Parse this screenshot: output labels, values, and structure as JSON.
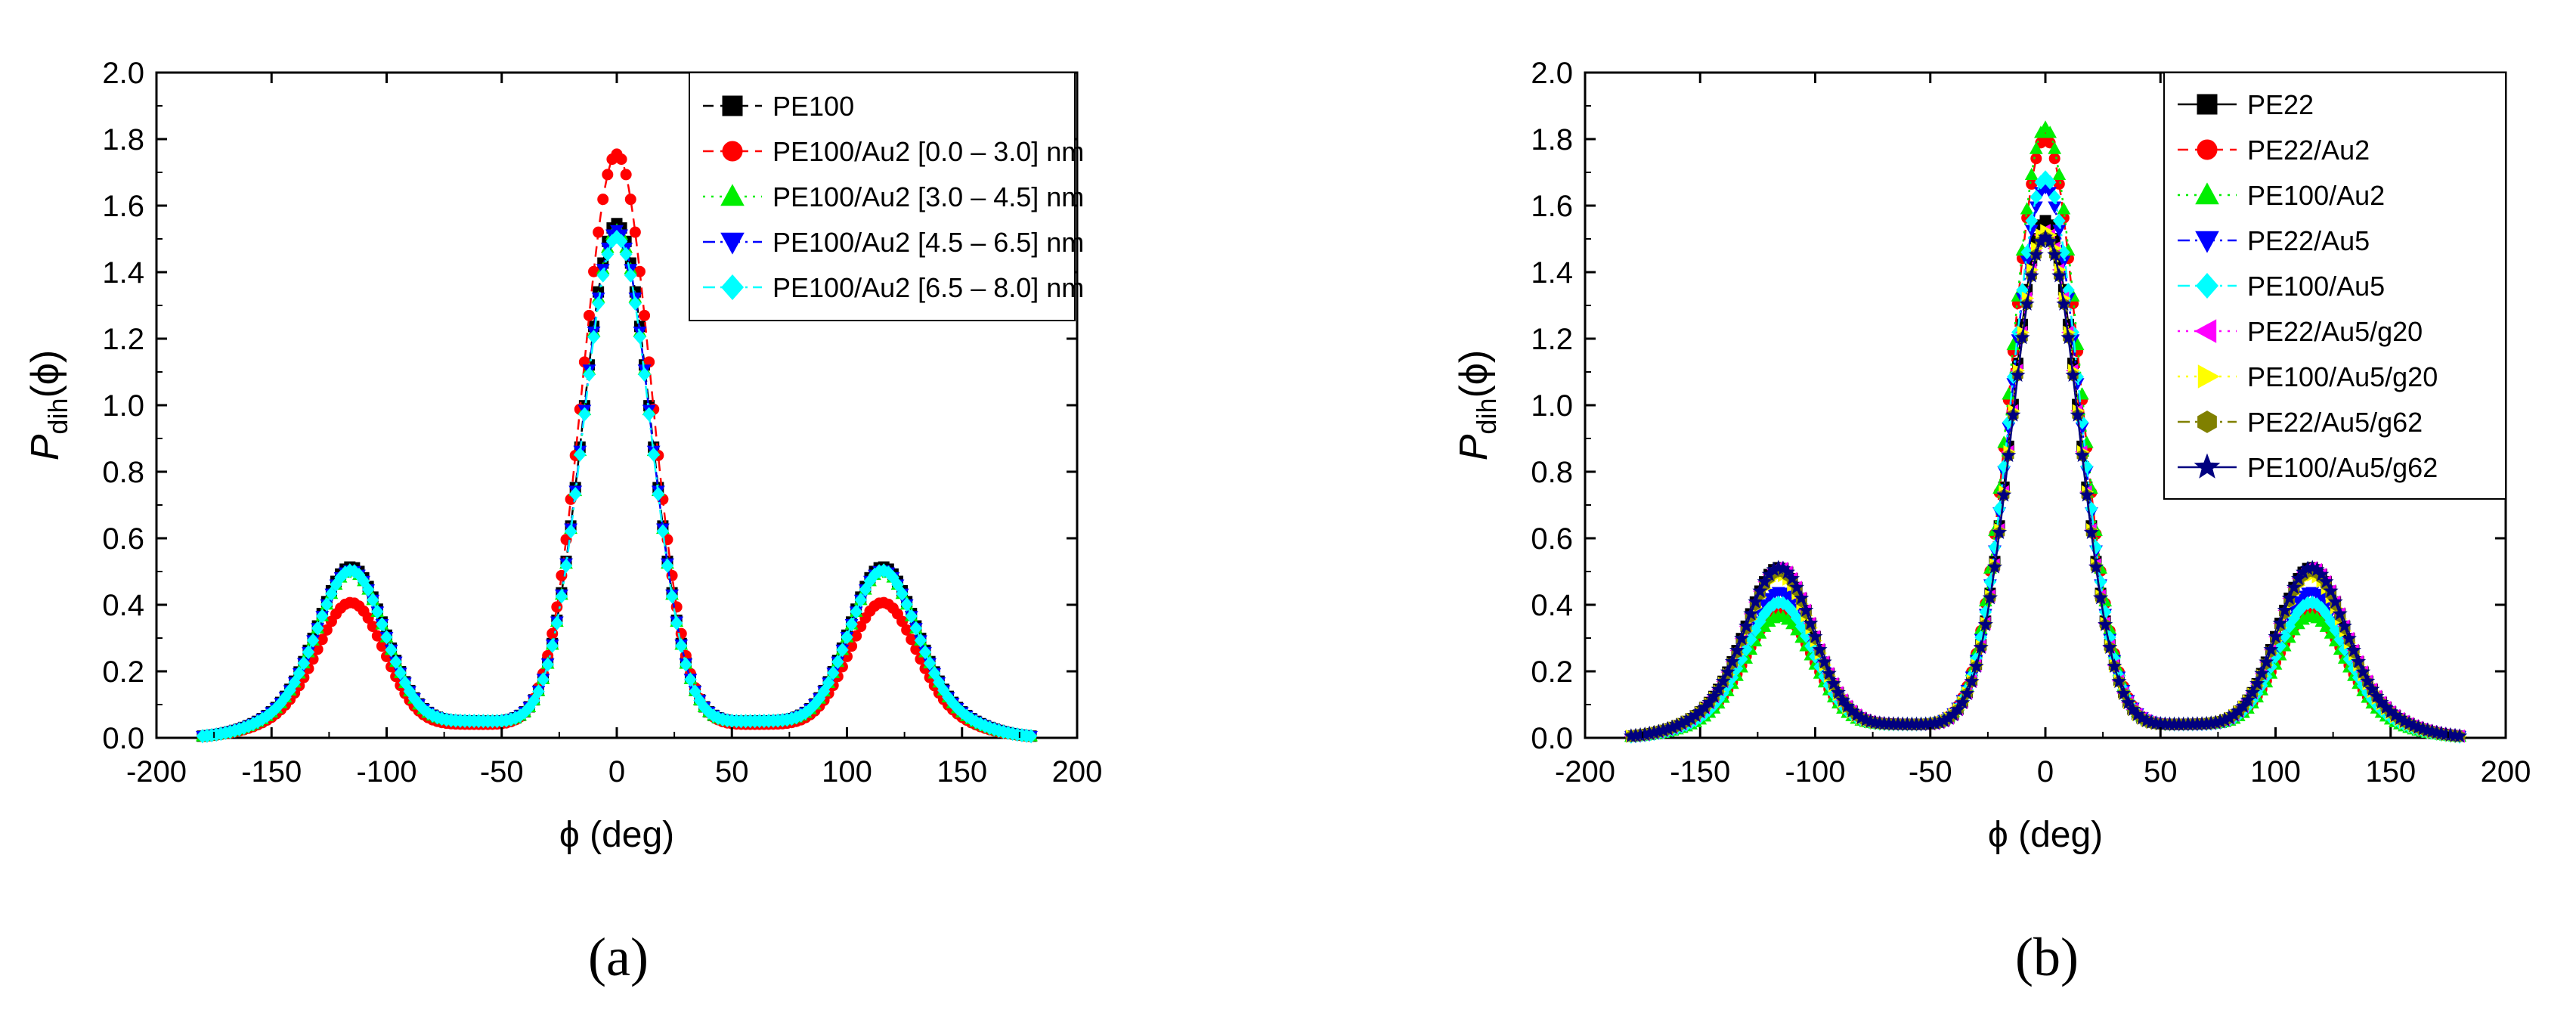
{
  "chart_data": [
    {
      "type": "line",
      "panel_label": "a",
      "title": "",
      "xlabel": "ϕ (deg)",
      "ylabel": "P",
      "ylabel_sub": "dih",
      "ylabel_arg": "(ϕ)",
      "xlim": [
        -200,
        200
      ],
      "ylim": [
        0.0,
        2.0
      ],
      "xticks": [
        -200,
        -150,
        -100,
        -50,
        0,
        50,
        100,
        150,
        200
      ],
      "yticks": [
        0.0,
        0.2,
        0.4,
        0.6,
        0.8,
        1.0,
        1.2,
        1.4,
        1.6,
        1.8,
        2.0
      ],
      "ytick_labels": [
        "0.0",
        "0.2",
        "0.4",
        "0.6",
        "0.8",
        "1.0",
        "1.2",
        "1.4",
        "1.6",
        "1.8",
        "2.0"
      ],
      "grid": false,
      "legend_position": "top-right",
      "data_range": [
        -180,
        180
      ],
      "series": [
        {
          "name": "PE100",
          "color": "#000000",
          "marker": "square",
          "line": "dash",
          "center_peak": 1.54,
          "side_peak": 0.48,
          "min": 0.05
        },
        {
          "name": "PE100/Au2 [0.0 – 3.0] nm",
          "color": "#ff0000",
          "marker": "circle",
          "line": "dash",
          "center_peak": 1.75,
          "side_peak": 0.38,
          "min": 0.04
        },
        {
          "name": "PE100/Au2 [3.0 – 4.5] nm",
          "color": "#00ee00",
          "marker": "triangle-up",
          "line": "dot",
          "center_peak": 1.52,
          "side_peak": 0.47,
          "min": 0.05
        },
        {
          "name": "PE100/Au2 [4.5 – 6.5] nm",
          "color": "#0000ff",
          "marker": "triangle-down",
          "line": "dashdot",
          "center_peak": 1.52,
          "side_peak": 0.47,
          "min": 0.05
        },
        {
          "name": "PE100/Au2 [6.5 – 8.0] nm",
          "color": "#00ffff",
          "marker": "diamond",
          "line": "dashdot",
          "center_peak": 1.5,
          "side_peak": 0.47,
          "min": 0.05
        }
      ]
    },
    {
      "type": "line",
      "panel_label": "b",
      "title": "",
      "xlabel": "ϕ (deg)",
      "ylabel": "P",
      "ylabel_sub": "dih",
      "ylabel_arg": "(ϕ)",
      "xlim": [
        -200,
        200
      ],
      "ylim": [
        0.0,
        2.0
      ],
      "xticks": [
        -200,
        -150,
        -100,
        -50,
        0,
        50,
        100,
        150,
        200
      ],
      "yticks": [
        0.0,
        0.2,
        0.4,
        0.6,
        0.8,
        1.0,
        1.2,
        1.4,
        1.6,
        1.8,
        2.0
      ],
      "ytick_labels": [
        "0.0",
        "0.2",
        "0.4",
        "0.6",
        "0.8",
        "1.0",
        "1.2",
        "1.4",
        "1.6",
        "1.8",
        "2.0"
      ],
      "grid": false,
      "legend_position": "top-right",
      "data_range": [
        -180,
        180
      ],
      "series": [
        {
          "name": "PE22",
          "color": "#000000",
          "marker": "square",
          "line": "solid",
          "center_peak": 1.55,
          "side_peak": 0.48,
          "min": 0.04
        },
        {
          "name": "PE22/Au2",
          "color": "#ff0000",
          "marker": "circle",
          "line": "dash",
          "center_peak": 1.8,
          "side_peak": 0.35,
          "min": 0.04
        },
        {
          "name": "PE100/Au2",
          "color": "#00ee00",
          "marker": "triangle-up",
          "line": "dot",
          "center_peak": 1.83,
          "side_peak": 0.34,
          "min": 0.04
        },
        {
          "name": "PE22/Au5",
          "color": "#0000ff",
          "marker": "triangle-down",
          "line": "dashdot",
          "center_peak": 1.65,
          "side_peak": 0.41,
          "min": 0.04
        },
        {
          "name": "PE100/Au5",
          "color": "#00ffff",
          "marker": "diamond",
          "line": "dashdot",
          "center_peak": 1.68,
          "side_peak": 0.38,
          "min": 0.04
        },
        {
          "name": "PE22/Au5/g20",
          "color": "#ff00ff",
          "marker": "triangle-left",
          "line": "dot",
          "center_peak": 1.52,
          "side_peak": 0.48,
          "min": 0.04
        },
        {
          "name": "PE100/Au5/g20",
          "color": "#ffff00",
          "marker": "triangle-right",
          "line": "dot",
          "center_peak": 1.52,
          "side_peak": 0.46,
          "min": 0.04
        },
        {
          "name": "PE22/Au5/g62",
          "color": "#808000",
          "marker": "hexagon",
          "line": "dashdot",
          "center_peak": 1.5,
          "side_peak": 0.47,
          "min": 0.04
        },
        {
          "name": "PE100/Au5/g62",
          "color": "#000080",
          "marker": "star",
          "line": "solid",
          "center_peak": 1.5,
          "side_peak": 0.48,
          "min": 0.04
        }
      ]
    }
  ],
  "captions": [
    "(a)",
    "(b)"
  ]
}
